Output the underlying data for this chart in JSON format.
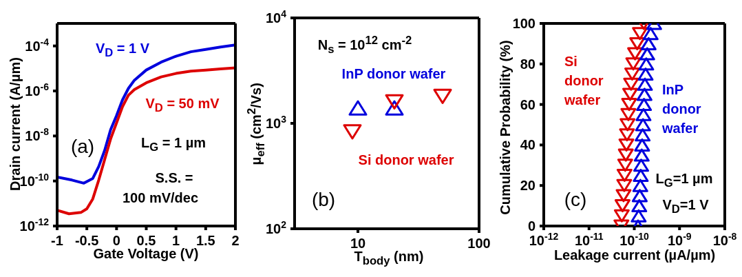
{
  "chart_data": [
    {
      "type": "line",
      "xlabel": "Gate Voltage (V)",
      "ylabel": "Drain current (A/µm)",
      "log": "y",
      "marker": "none",
      "line_style": "solid",
      "xlim": [
        -1,
        2
      ],
      "xticks": [
        -1,
        -0.5,
        0,
        0.5,
        1,
        1.5,
        2
      ],
      "ylim": [
        1e-12,
        0.001
      ],
      "yticks": [
        {
          "value": 1e-12,
          "label": "10$^{-12}$"
        },
        {
          "value": 1e-10,
          "label": "10$^{-10}$"
        },
        {
          "value": 1e-08,
          "label": "10$^{-8}$"
        },
        {
          "value": 1e-06,
          "label": "10$^{-6}$"
        },
        {
          "value": 0.0001,
          "label": "10$^{-4}$"
        }
      ],
      "annotations": [
        "(a)",
        "L$_{G}$ = 1 µm",
        "S.S. =",
        "100 mV/dec"
      ],
      "series": [
        {
          "name": "V$_{D}$ = 1 V",
          "color": "#0000dd",
          "x": [
            -1,
            -0.75,
            -0.55,
            -0.4,
            -0.3,
            -0.2,
            -0.1,
            0,
            0.1,
            0.2,
            0.3,
            0.5,
            0.75,
            1,
            1.25,
            1.5,
            1.75,
            2
          ],
          "values": [
            1.5e-10,
            1.1e-10,
            8e-11,
            1.3e-10,
            4.4e-10,
            2.3e-09,
            1.9e-08,
            8e-08,
            4e-07,
            1.3e-06,
            3e-06,
            8.5e-06,
            1.9e-05,
            3.5e-05,
            5.5e-05,
            7e-05,
            9e-05,
            0.00011
          ]
        },
        {
          "name": "V$_{D}$ = 50 mV",
          "color": "#dd0000",
          "x": [
            -1,
            -0.8,
            -0.6,
            -0.5,
            -0.4,
            -0.3,
            -0.2,
            -0.1,
            0,
            0.1,
            0.2,
            0.3,
            0.5,
            0.75,
            1,
            1.25,
            1.5,
            1.75,
            2
          ],
          "values": [
            5e-12,
            3.5e-12,
            4e-12,
            5.8e-12,
            1.6e-11,
            1.1e-10,
            9e-10,
            7.4e-09,
            3.8e-08,
            2e-07,
            6.5e-07,
            1.15e-06,
            2.3e-06,
            4.2e-06,
            6e-06,
            7.6e-06,
            8.5e-06,
            9.5e-06,
            1.07e-05
          ]
        }
      ]
    },
    {
      "type": "scatter",
      "xlabel": "T$_{body}$ (nm)",
      "ylabel": "μ$_{eff}$ (cm$^{2}$/Vs)",
      "log": "xy",
      "xlim": [
        3,
        100
      ],
      "xticks": [
        10,
        100
      ],
      "ylim": [
        100,
        10000
      ],
      "yticks": [
        {
          "value": 100,
          "label": "10$^{2}$"
        },
        {
          "value": 1000,
          "label": "10$^{3}$"
        },
        {
          "value": 10000,
          "label": "10$^{4}$"
        }
      ],
      "annotations": [
        "N$_{s}$ = 10$^{12}$ cm$^{-2}$",
        "(b)"
      ],
      "series": [
        {
          "name": "InP donor wafer",
          "color": "#0000dd",
          "marker": "triangle",
          "x": [
            10,
            20
          ],
          "values": [
            1400,
            1400
          ]
        },
        {
          "name": "Si donor wafer",
          "color": "#dd0000",
          "marker": "triangle-down",
          "x": [
            9,
            20,
            50
          ],
          "values": [
            830,
            1600,
            1800
          ]
        }
      ]
    },
    {
      "type": "scatter",
      "xlabel": "Leakage current (µA/µm)",
      "ylabel": "Cumulative Probability (%)",
      "log": "x",
      "xlim": [
        1e-12,
        1e-08
      ],
      "xticks": [
        {
          "value": 1e-12,
          "label": "10$^{-12}$"
        },
        {
          "value": 1e-11,
          "label": "10$^{-11}$"
        },
        {
          "value": 1e-10,
          "label": "10$^{-10}$"
        },
        {
          "value": 1e-09,
          "label": "10$^{-9}$"
        },
        {
          "value": 1e-08,
          "label": "10$^{-8}$"
        }
      ],
      "ylim": [
        0,
        100
      ],
      "yticks": [
        0,
        20,
        40,
        60,
        80,
        100
      ],
      "annotations": [
        "(c)",
        "L$_{G}$=1 µm",
        "V$_{D}$=1 V"
      ],
      "series": [
        {
          "name": "Si donor wafer",
          "color": "#dd0000",
          "marker": "triangle-down",
          "x": [
            5.2e-11,
            5.3e-11,
            5.5e-11,
            5.8e-11,
            6e-11,
            6.1e-11,
            6.3e-11,
            6.5e-11,
            6.7e-11,
            6.9e-11,
            7.1e-11,
            7.4e-11,
            7.7e-11,
            8.1e-11,
            8.5e-11,
            9e-11,
            9.5e-11,
            1.04e-10,
            1.16e-10,
            1.33e-10,
            1.62e-10
          ],
          "values": [
            0,
            5,
            10,
            15,
            20,
            25,
            30,
            35,
            40,
            45,
            50,
            55,
            60,
            65,
            70,
            75,
            80,
            85,
            90,
            95,
            100
          ]
        },
        {
          "name": "InP donor wafer",
          "color": "#0000dd",
          "marker": "triangle",
          "x": [
            1.21e-10,
            1.25e-10,
            1.29e-10,
            1.32e-10,
            1.36e-10,
            1.39e-10,
            1.42e-10,
            1.46e-10,
            1.49e-10,
            1.53e-10,
            1.56e-10,
            1.6e-10,
            1.64e-10,
            1.68e-10,
            1.72e-10,
            1.78e-10,
            1.84e-10,
            1.93e-10,
            2.07e-10,
            2.3e-10,
            2.75e-10
          ],
          "values": [
            0,
            5,
            10,
            15,
            20,
            25,
            30,
            35,
            40,
            45,
            50,
            55,
            60,
            65,
            70,
            75,
            80,
            85,
            90,
            95,
            100
          ]
        }
      ]
    }
  ]
}
